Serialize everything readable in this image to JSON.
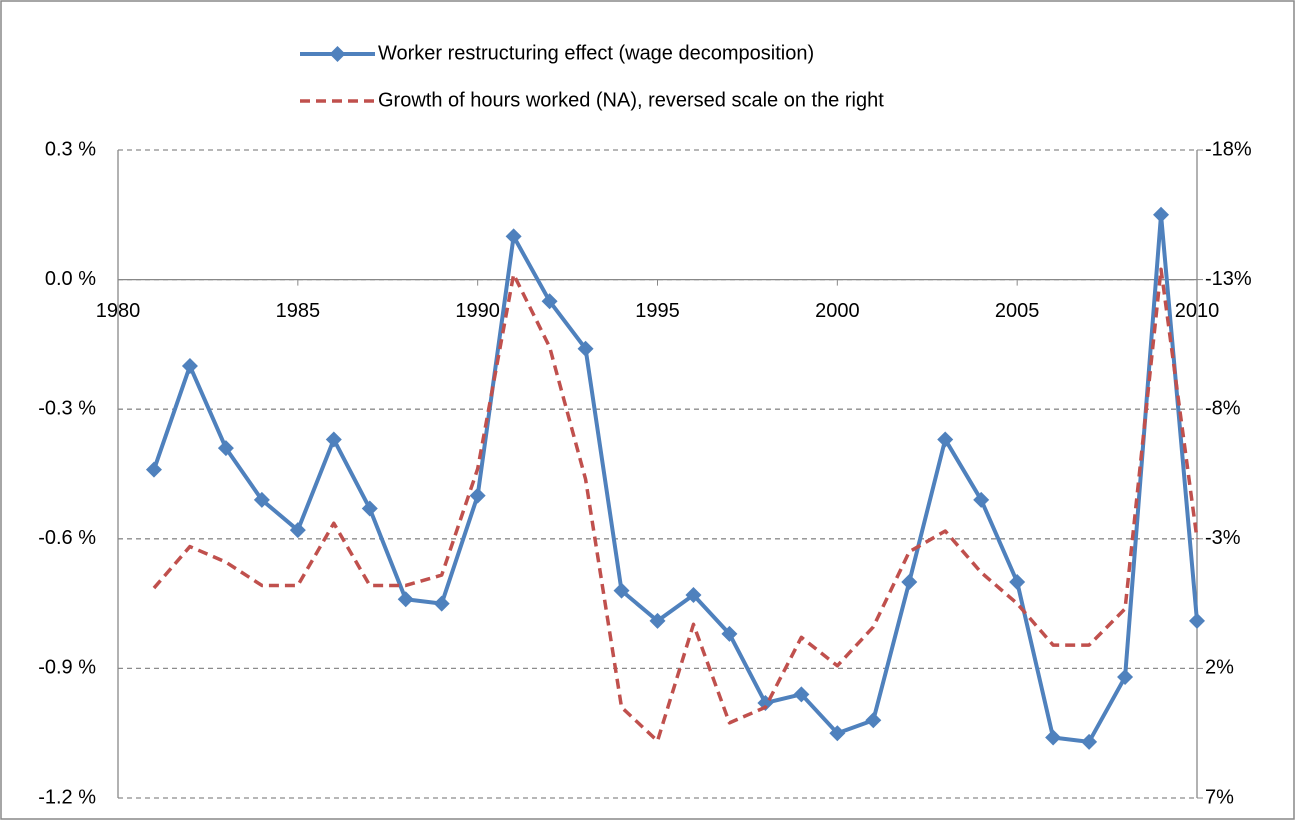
{
  "chart_data": {
    "type": "line",
    "x": [
      1981,
      1982,
      1983,
      1984,
      1985,
      1986,
      1987,
      1988,
      1989,
      1990,
      1991,
      1992,
      1993,
      1994,
      1995,
      1996,
      1997,
      1998,
      1999,
      2000,
      2001,
      2002,
      2003,
      2004,
      2005,
      2006,
      2007,
      2008,
      2009,
      2010
    ],
    "xlim": [
      1980,
      2010
    ],
    "xticks": [
      1980,
      1985,
      1990,
      1995,
      2000,
      2005,
      2010
    ],
    "ylim": [
      -1.2,
      0.3
    ],
    "yticks": [
      {
        "value": -1.2,
        "label": "-1.2 %"
      },
      {
        "value": -0.9,
        "label": "-0.9 %"
      },
      {
        "value": -0.6,
        "label": "-0.6 %"
      },
      {
        "value": -0.3,
        "label": "-0.3 %"
      },
      {
        "value": 0.0,
        "label": "0.0 %"
      },
      {
        "value": 0.3,
        "label": "0.3 %"
      }
    ],
    "y2lim": [
      7,
      -18
    ],
    "y2ticks": [
      {
        "value": 7,
        "label": "7%"
      },
      {
        "value": 2,
        "label": "2%"
      },
      {
        "value": -3,
        "label": "-3%"
      },
      {
        "value": -8,
        "label": "-8%"
      },
      {
        "value": -13,
        "label": "-13%"
      },
      {
        "value": -18,
        "label": "-18%"
      }
    ],
    "grid": true,
    "legend": "top",
    "series": [
      {
        "name": "Worker restructuring effect (wage decomposition)",
        "color": "#4f81bd",
        "marker": "diamond",
        "values": [
          -0.44,
          -0.2,
          -0.39,
          -0.51,
          -0.58,
          -0.37,
          -0.53,
          -0.74,
          -0.75,
          -0.5,
          0.1,
          -0.05,
          -0.16,
          -0.72,
          -0.79,
          -0.73,
          -0.82,
          -0.98,
          -0.96,
          -1.05,
          -1.02,
          -0.7,
          -0.37,
          -0.51,
          -0.7,
          -1.06,
          -1.07,
          -0.92,
          0.15,
          -0.79
        ]
      },
      {
        "name": "Growth of hours worked (NA), reversed scale on the right",
        "color": "#c0504d",
        "dash": true,
        "axis": "y2",
        "values": [
          -1.1,
          -2.7,
          -2.1,
          -1.2,
          -1.2,
          -3.6,
          -1.2,
          -1.2,
          -1.6,
          -5.7,
          -13.2,
          -10.4,
          -5.3,
          3.5,
          4.8,
          0.3,
          4.1,
          3.5,
          0.8,
          1.9,
          0.4,
          -2.5,
          -3.3,
          -1.7,
          -0.5,
          1.1,
          1.1,
          -0.3,
          -13.4,
          -3.0
        ]
      }
    ]
  }
}
